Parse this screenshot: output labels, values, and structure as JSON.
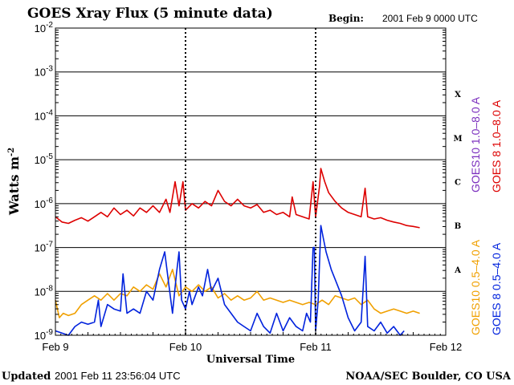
{
  "chart_data": {
    "type": "line",
    "title": "GOES Xray Flux (5 minute data)",
    "begin_label": "Begin:",
    "begin_value": "2001 Feb 9 0000 UTC",
    "ylabel": "Watts m",
    "ylabel_sup": "-2",
    "xlabel": "Universal Time",
    "yscale": "log",
    "ylim": [
      1e-09,
      0.01
    ],
    "xlim": [
      0,
      3
    ],
    "x_ticks": [
      {
        "x": 0,
        "label": "Feb 9"
      },
      {
        "x": 1,
        "label": "Feb 10"
      },
      {
        "x": 2,
        "label": "Feb 11"
      },
      {
        "x": 3,
        "label": "Feb 12"
      }
    ],
    "y_ticks": [
      {
        "exp": -2,
        "base": "10",
        "sup": "-2"
      },
      {
        "exp": -3,
        "base": "10",
        "sup": "-3"
      },
      {
        "exp": -4,
        "base": "10",
        "sup": "-4"
      },
      {
        "exp": -5,
        "base": "10",
        "sup": "-5"
      },
      {
        "exp": -6,
        "base": "10",
        "sup": "-6"
      },
      {
        "exp": -7,
        "base": "10",
        "sup": "-7"
      },
      {
        "exp": -8,
        "base": "10",
        "sup": "-8"
      },
      {
        "exp": -9,
        "base": "10",
        "sup": "-9"
      }
    ],
    "flare_classes": [
      {
        "label": "X",
        "exp": -3.5
      },
      {
        "label": "M",
        "exp": -4.5
      },
      {
        "label": "C",
        "exp": -5.5
      },
      {
        "label": "B",
        "exp": -6.5
      },
      {
        "label": "A",
        "exp": -7.5
      }
    ],
    "series": [
      {
        "name": "GOES10 1.0-8.0 A",
        "color": "#7b2fbe",
        "legend": "GOES10 1.0–8.0 A"
      },
      {
        "name": "GOES 8 1.0-8.0 A",
        "color": "#dd0000",
        "legend": "GOES 8 1.0–8.0 A",
        "points": [
          [
            0,
            -6.3
          ],
          [
            0.05,
            -6.42
          ],
          [
            0.1,
            -6.45
          ],
          [
            0.15,
            -6.38
          ],
          [
            0.2,
            -6.32
          ],
          [
            0.25,
            -6.4
          ],
          [
            0.3,
            -6.3
          ],
          [
            0.35,
            -6.2
          ],
          [
            0.4,
            -6.3
          ],
          [
            0.45,
            -6.1
          ],
          [
            0.5,
            -6.25
          ],
          [
            0.55,
            -6.15
          ],
          [
            0.6,
            -6.28
          ],
          [
            0.65,
            -6.1
          ],
          [
            0.7,
            -6.2
          ],
          [
            0.75,
            -6.05
          ],
          [
            0.8,
            -6.2
          ],
          [
            0.85,
            -5.9
          ],
          [
            0.88,
            -6.2
          ],
          [
            0.92,
            -5.5
          ],
          [
            0.95,
            -6.05
          ],
          [
            0.98,
            -5.5
          ],
          [
            1.0,
            -6.15
          ],
          [
            1.05,
            -6.0
          ],
          [
            1.1,
            -6.1
          ],
          [
            1.15,
            -5.95
          ],
          [
            1.2,
            -6.05
          ],
          [
            1.25,
            -5.7
          ],
          [
            1.3,
            -5.95
          ],
          [
            1.35,
            -6.05
          ],
          [
            1.4,
            -5.9
          ],
          [
            1.45,
            -6.05
          ],
          [
            1.5,
            -6.1
          ],
          [
            1.55,
            -6.02
          ],
          [
            1.6,
            -6.2
          ],
          [
            1.65,
            -6.15
          ],
          [
            1.7,
            -6.25
          ],
          [
            1.75,
            -6.2
          ],
          [
            1.8,
            -6.3
          ],
          [
            1.82,
            -5.85
          ],
          [
            1.85,
            -6.25
          ],
          [
            1.9,
            -6.3
          ],
          [
            1.95,
            -6.35
          ],
          [
            1.98,
            -5.5
          ],
          [
            2.0,
            -6.3
          ],
          [
            2.03,
            -5.6
          ],
          [
            2.04,
            -5.2
          ],
          [
            2.07,
            -5.5
          ],
          [
            2.1,
            -5.75
          ],
          [
            2.15,
            -5.95
          ],
          [
            2.2,
            -6.1
          ],
          [
            2.25,
            -6.2
          ],
          [
            2.3,
            -6.25
          ],
          [
            2.35,
            -6.3
          ],
          [
            2.38,
            -5.65
          ],
          [
            2.4,
            -6.3
          ],
          [
            2.45,
            -6.35
          ],
          [
            2.5,
            -6.32
          ],
          [
            2.55,
            -6.38
          ],
          [
            2.6,
            -6.42
          ],
          [
            2.65,
            -6.45
          ],
          [
            2.7,
            -6.5
          ],
          [
            2.75,
            -6.52
          ],
          [
            2.8,
            -6.55
          ]
        ]
      },
      {
        "name": "GOES10 0.5-4.0 A",
        "color": "#f0a000",
        "legend": "GOES10 0.5–4.0 A",
        "points": [
          [
            0,
            -8.2
          ],
          [
            0.03,
            -8.6
          ],
          [
            0.06,
            -8.5
          ],
          [
            0.1,
            -8.55
          ],
          [
            0.15,
            -8.5
          ],
          [
            0.2,
            -8.3
          ],
          [
            0.25,
            -8.2
          ],
          [
            0.3,
            -8.1
          ],
          [
            0.35,
            -8.2
          ],
          [
            0.4,
            -8.05
          ],
          [
            0.45,
            -8.2
          ],
          [
            0.5,
            -8.05
          ],
          [
            0.55,
            -8.1
          ],
          [
            0.6,
            -7.9
          ],
          [
            0.65,
            -8.0
          ],
          [
            0.7,
            -7.85
          ],
          [
            0.75,
            -7.95
          ],
          [
            0.8,
            -7.6
          ],
          [
            0.85,
            -7.9
          ],
          [
            0.9,
            -7.5
          ],
          [
            0.95,
            -8.1
          ],
          [
            1.0,
            -7.9
          ],
          [
            1.05,
            -8.0
          ],
          [
            1.1,
            -7.85
          ],
          [
            1.15,
            -8.0
          ],
          [
            1.2,
            -7.9
          ],
          [
            1.25,
            -8.15
          ],
          [
            1.3,
            -8.05
          ],
          [
            1.35,
            -8.2
          ],
          [
            1.4,
            -8.1
          ],
          [
            1.45,
            -8.2
          ],
          [
            1.5,
            -8.15
          ],
          [
            1.55,
            -8.0
          ],
          [
            1.6,
            -8.2
          ],
          [
            1.65,
            -8.15
          ],
          [
            1.7,
            -8.2
          ],
          [
            1.75,
            -8.25
          ],
          [
            1.8,
            -8.2
          ],
          [
            1.85,
            -8.25
          ],
          [
            1.9,
            -8.3
          ],
          [
            1.95,
            -8.25
          ],
          [
            2.0,
            -8.3
          ],
          [
            2.05,
            -8.2
          ],
          [
            2.1,
            -8.3
          ],
          [
            2.15,
            -8.1
          ],
          [
            2.2,
            -8.15
          ],
          [
            2.25,
            -8.2
          ],
          [
            2.3,
            -8.15
          ],
          [
            2.35,
            -8.3
          ],
          [
            2.4,
            -8.2
          ],
          [
            2.45,
            -8.4
          ],
          [
            2.5,
            -8.5
          ],
          [
            2.55,
            -8.45
          ],
          [
            2.6,
            -8.4
          ],
          [
            2.65,
            -8.45
          ],
          [
            2.7,
            -8.5
          ],
          [
            2.75,
            -8.45
          ],
          [
            2.8,
            -8.5
          ]
        ]
      },
      {
        "name": "GOES 8 0.5-4.0 A",
        "color": "#0022dd",
        "legend": "GOES 8 0.5–4.0 A",
        "points": [
          [
            0,
            -8.9
          ],
          [
            0.05,
            -8.95
          ],
          [
            0.1,
            -9.0
          ],
          [
            0.15,
            -8.8
          ],
          [
            0.2,
            -8.7
          ],
          [
            0.25,
            -8.75
          ],
          [
            0.3,
            -8.7
          ],
          [
            0.33,
            -8.2
          ],
          [
            0.35,
            -8.8
          ],
          [
            0.4,
            -8.3
          ],
          [
            0.45,
            -8.4
          ],
          [
            0.5,
            -8.45
          ],
          [
            0.52,
            -7.6
          ],
          [
            0.55,
            -8.5
          ],
          [
            0.6,
            -8.4
          ],
          [
            0.65,
            -8.5
          ],
          [
            0.7,
            -8.0
          ],
          [
            0.75,
            -8.2
          ],
          [
            0.8,
            -7.5
          ],
          [
            0.84,
            -7.1
          ],
          [
            0.87,
            -7.8
          ],
          [
            0.9,
            -8.5
          ],
          [
            0.93,
            -7.6
          ],
          [
            0.95,
            -7.1
          ],
          [
            0.97,
            -8.2
          ],
          [
            1.0,
            -8.4
          ],
          [
            1.03,
            -8.0
          ],
          [
            1.05,
            -8.3
          ],
          [
            1.1,
            -7.9
          ],
          [
            1.13,
            -8.1
          ],
          [
            1.17,
            -7.5
          ],
          [
            1.2,
            -8.0
          ],
          [
            1.25,
            -7.7
          ],
          [
            1.3,
            -8.3
          ],
          [
            1.35,
            -8.5
          ],
          [
            1.4,
            -8.7
          ],
          [
            1.45,
            -8.8
          ],
          [
            1.5,
            -8.9
          ],
          [
            1.55,
            -8.5
          ],
          [
            1.6,
            -8.8
          ],
          [
            1.65,
            -8.95
          ],
          [
            1.7,
            -8.5
          ],
          [
            1.75,
            -8.9
          ],
          [
            1.8,
            -8.6
          ],
          [
            1.85,
            -8.8
          ],
          [
            1.9,
            -8.9
          ],
          [
            1.93,
            -8.5
          ],
          [
            1.96,
            -8.7
          ],
          [
            1.98,
            -7.0
          ],
          [
            1.99,
            -7.0
          ],
          [
            2.0,
            -8.9
          ],
          [
            2.02,
            -8.2
          ],
          [
            2.04,
            -6.5
          ],
          [
            2.06,
            -6.8
          ],
          [
            2.08,
            -7.1
          ],
          [
            2.12,
            -7.5
          ],
          [
            2.16,
            -7.8
          ],
          [
            2.2,
            -8.1
          ],
          [
            2.25,
            -8.6
          ],
          [
            2.3,
            -8.9
          ],
          [
            2.35,
            -8.7
          ],
          [
            2.38,
            -7.2
          ],
          [
            2.4,
            -8.8
          ],
          [
            2.45,
            -8.9
          ],
          [
            2.5,
            -8.7
          ],
          [
            2.55,
            -8.95
          ],
          [
            2.6,
            -8.8
          ],
          [
            2.65,
            -9.0
          ],
          [
            2.68,
            -8.9
          ]
        ]
      }
    ]
  },
  "footer": {
    "updated_label": "Updated",
    "updated_value": "2001 Feb 11 23:56:04 UTC",
    "credit": "NOAA/SEC Boulder, CO USA"
  }
}
